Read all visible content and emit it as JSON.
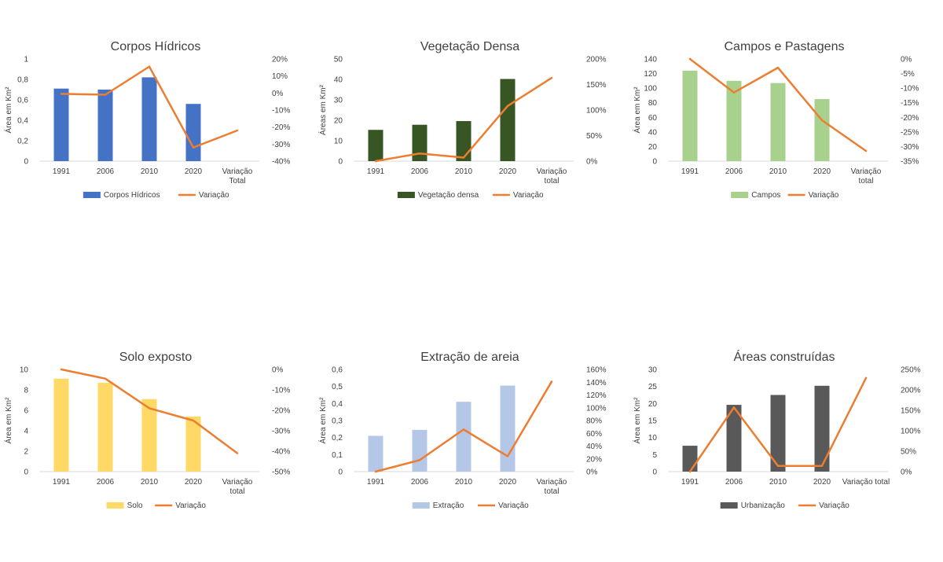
{
  "colors": {
    "line": "#ED7D31",
    "axis": "#D9D9D9",
    "text": "#404040"
  },
  "chart_data": [
    {
      "type": "bar",
      "title": "Corpos Hídricos",
      "ylabel": "Área em Km²",
      "categories": [
        "1991",
        "2006",
        "2010",
        "2020",
        [
          "Variação",
          "Total"
        ]
      ],
      "ylim": [
        0,
        1
      ],
      "yticks": [
        "0",
        "0,2",
        "0,4",
        "0,6",
        "0,8",
        "1"
      ],
      "y2lim": [
        -40,
        20
      ],
      "y2ticks": [
        "-40%",
        "-30%",
        "-20%",
        "-10%",
        "0%",
        "10%",
        "20%"
      ],
      "series": [
        {
          "name": "Corpos Hídricos",
          "type": "bar",
          "color": "#4472C4",
          "values": [
            0.71,
            0.7,
            0.82,
            0.56,
            null
          ]
        },
        {
          "name": "Variação",
          "type": "line",
          "axis": "secondary",
          "values": [
            -0.5,
            -1,
            15.5,
            -32,
            -22
          ]
        }
      ]
    },
    {
      "type": "bar",
      "title": "Vegetação Densa",
      "ylabel": "Áreas em Km²",
      "categories": [
        "1991",
        "2006",
        "2010",
        "2020",
        [
          "Variação",
          "total"
        ]
      ],
      "ylim": [
        0,
        50
      ],
      "yticks": [
        "0",
        "10",
        "20",
        "30",
        "40",
        "50"
      ],
      "y2lim": [
        0,
        200
      ],
      "y2ticks": [
        "0%",
        "50%",
        "100%",
        "150%",
        "200%"
      ],
      "series": [
        {
          "name": "Vegetação densa",
          "type": "bar",
          "color": "#375623",
          "values": [
            15.3,
            17.8,
            19.6,
            40.2,
            null
          ]
        },
        {
          "name": "Variação",
          "type": "line",
          "axis": "secondary",
          "values": [
            0,
            15,
            7,
            108,
            163
          ]
        }
      ]
    },
    {
      "type": "bar",
      "title": "Campos e Pastagens",
      "ylabel": "Área em Km²",
      "categories": [
        "1991",
        "2006",
        "2010",
        "2020",
        [
          "Variação",
          "total"
        ]
      ],
      "ylim": [
        0,
        140
      ],
      "yticks": [
        "0",
        "20",
        "40",
        "60",
        "80",
        "100",
        "120",
        "140"
      ],
      "y2lim": [
        -35,
        0
      ],
      "y2ticks": [
        "-35%",
        "-30%",
        "-25%",
        "-20%",
        "-15%",
        "-10%",
        "-5%",
        "0%"
      ],
      "series": [
        {
          "name": "Campos",
          "type": "bar",
          "color": "#A9D18E",
          "values": [
            124,
            110,
            107,
            85,
            null
          ]
        },
        {
          "name": "Variação",
          "type": "line",
          "axis": "secondary",
          "values": [
            0,
            -11.5,
            -3,
            -21,
            -31.5
          ]
        }
      ]
    },
    {
      "type": "bar",
      "title": "Solo exposto",
      "ylabel": "Área em Km²",
      "categories": [
        "1991",
        "2006",
        "2010",
        "2020",
        [
          "Variação",
          "total"
        ]
      ],
      "ylim": [
        0,
        10
      ],
      "yticks": [
        "0",
        "2",
        "4",
        "6",
        "8",
        "10"
      ],
      "y2lim": [
        -50,
        0
      ],
      "y2ticks": [
        "-50%",
        "-40%",
        "-30%",
        "-20%",
        "-10%",
        "0%"
      ],
      "series": [
        {
          "name": "Solo",
          "type": "bar",
          "color": "#FFD966",
          "values": [
            9.1,
            8.7,
            7.1,
            5.4,
            null
          ]
        },
        {
          "name": "Variação",
          "type": "line",
          "axis": "secondary",
          "values": [
            0,
            -4.5,
            -19,
            -25,
            -41
          ]
        }
      ]
    },
    {
      "type": "bar",
      "title": "Extração de areia",
      "ylabel": "Área em Km²",
      "categories": [
        "1991",
        "2006",
        "2010",
        "2020",
        [
          "Variação",
          "total"
        ]
      ],
      "ylim": [
        0,
        0.6
      ],
      "yticks": [
        "0",
        "0,1",
        "0,2",
        "0,3",
        "0,4",
        "0,5",
        "0,6"
      ],
      "y2lim": [
        0,
        160
      ],
      "y2ticks": [
        "0%",
        "20%",
        "40%",
        "60%",
        "80%",
        "100%",
        "120%",
        "140%",
        "160%"
      ],
      "series": [
        {
          "name": "Extração",
          "type": "bar",
          "color": "#B4C7E7",
          "values": [
            0.21,
            0.245,
            0.41,
            0.505,
            null
          ]
        },
        {
          "name": "Variação",
          "type": "line",
          "axis": "secondary",
          "values": [
            0,
            18,
            66,
            24,
            141
          ]
        }
      ]
    },
    {
      "type": "bar",
      "title": "Áreas construídas",
      "ylabel": "Área em Km²",
      "categories": [
        "1991",
        "2006",
        "2010",
        "2020",
        [
          "Variação total"
        ]
      ],
      "ylim": [
        0,
        30
      ],
      "yticks": [
        "0",
        "5",
        "10",
        "15",
        "20",
        "25",
        "30"
      ],
      "y2lim": [
        0,
        250
      ],
      "y2ticks": [
        "0%",
        "50%",
        "100%",
        "150%",
        "200%",
        "250%"
      ],
      "series": [
        {
          "name": "Urbanização",
          "type": "bar",
          "color": "#595959",
          "values": [
            7.6,
            19.6,
            22.5,
            25.2,
            null
          ]
        },
        {
          "name": "Variação",
          "type": "line",
          "axis": "secondary",
          "values": [
            0,
            157,
            14,
            14,
            229
          ]
        }
      ]
    }
  ]
}
